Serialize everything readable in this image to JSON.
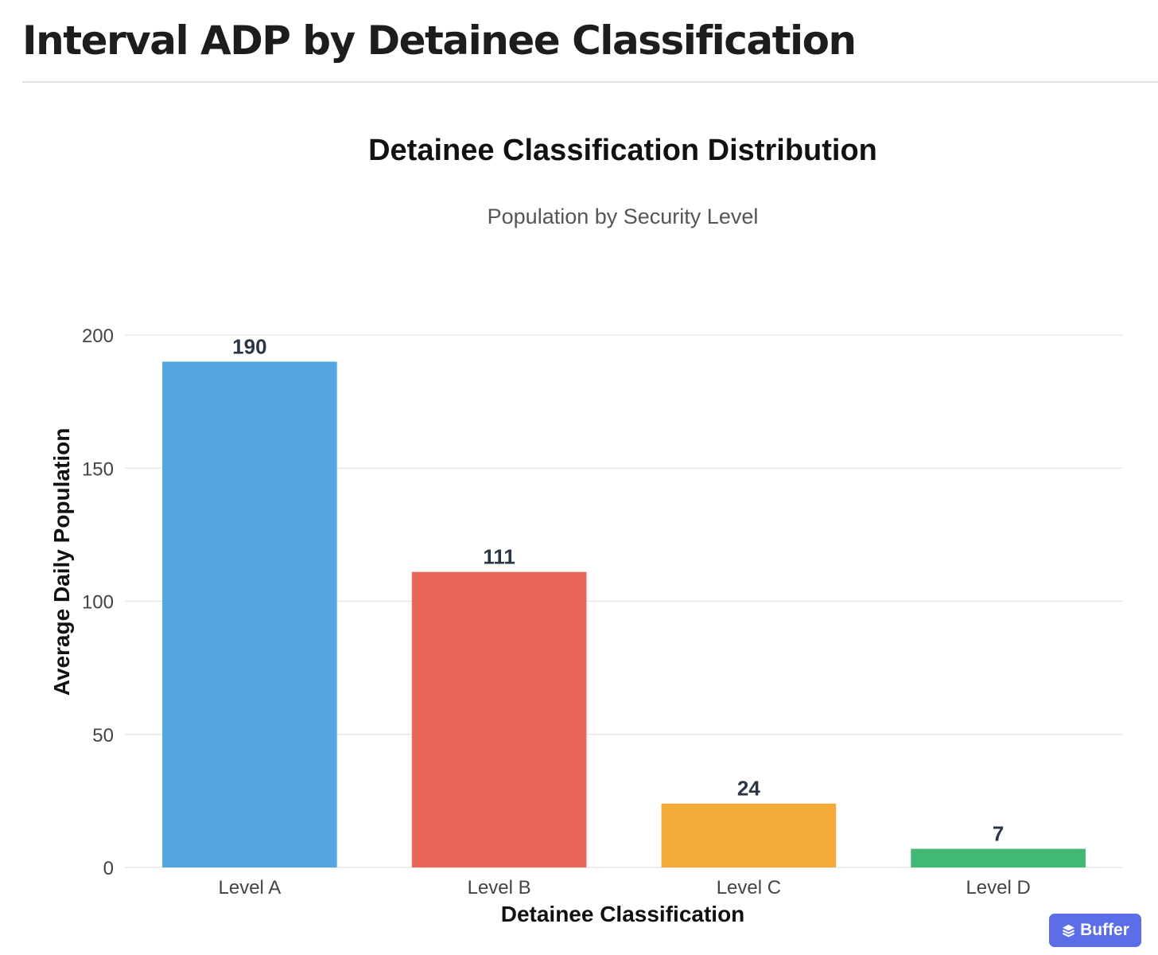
{
  "page": {
    "heading": "Interval ADP by Detainee Classification"
  },
  "buffer_badge": {
    "label": "Buffer",
    "icon": "layers-icon",
    "color": "#5b6ee8"
  },
  "chart_data": {
    "type": "bar",
    "title": "Detainee Classification Distribution",
    "subtitle": "Population by Security Level",
    "xlabel": "Detainee Classification",
    "ylabel": "Average Daily Population",
    "categories": [
      "Level A",
      "Level B",
      "Level C",
      "Level D"
    ],
    "values": [
      190,
      111,
      24,
      7
    ],
    "value_labels": [
      "190",
      "111",
      "24",
      "7"
    ],
    "colors": [
      "#54a6df",
      "#eb665a",
      "#f4aa38",
      "#41b873"
    ],
    "ylim": [
      0,
      200
    ],
    "yticks": [
      0,
      50,
      100,
      150,
      200
    ],
    "grid": true,
    "legend": "none"
  }
}
